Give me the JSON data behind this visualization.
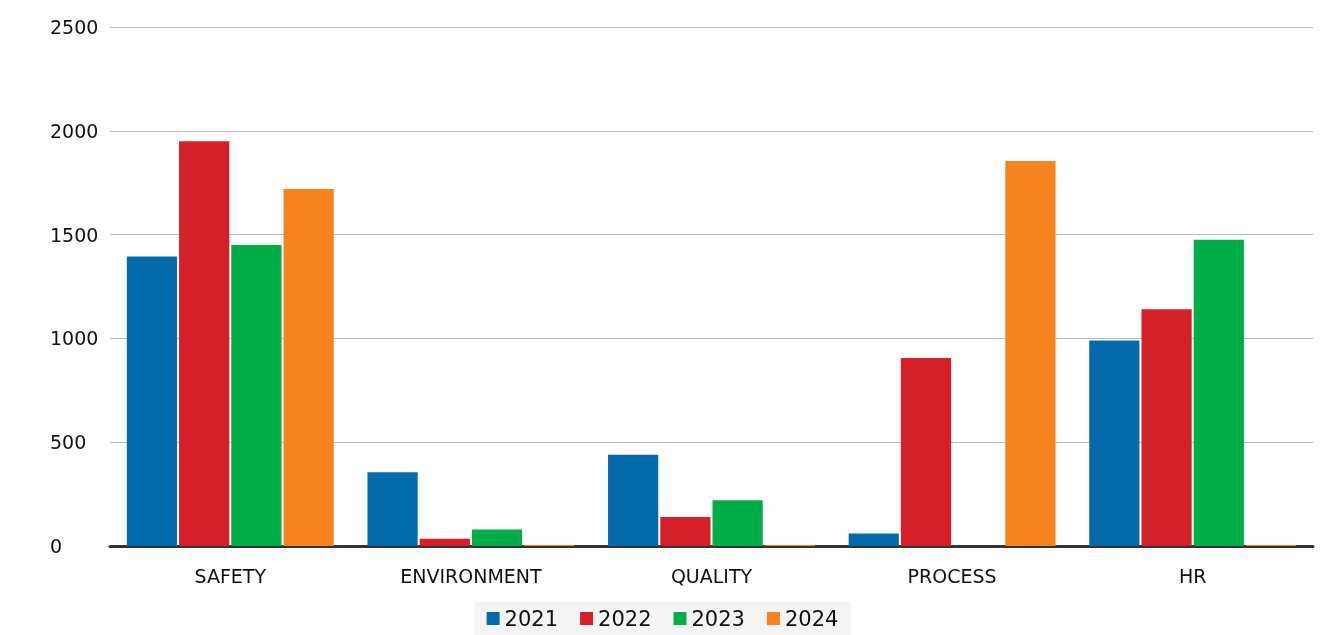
{
  "chart_data": {
    "type": "bar",
    "categories": [
      "SAFETY",
      "ENVIRONMENT",
      "QUALITY",
      "PROCESS",
      "HR"
    ],
    "series": [
      {
        "name": "2021",
        "color": "#036aab",
        "values": [
          1395,
          355,
          440,
          60,
          990
        ]
      },
      {
        "name": "2022",
        "color": "#d51f29",
        "values": [
          1950,
          35,
          140,
          905,
          1140
        ]
      },
      {
        "name": "2023",
        "color": "#02ad47",
        "values": [
          1450,
          80,
          220,
          null,
          1475
        ]
      },
      {
        "name": "2024",
        "color": "#f5831f",
        "values": [
          1720,
          5,
          5,
          1855,
          5
        ]
      }
    ],
    "ylim": [
      0,
      2500
    ],
    "yticks": [
      0,
      500,
      1000,
      1500,
      2000,
      2500
    ],
    "grid": "y",
    "legend": "bottom"
  }
}
